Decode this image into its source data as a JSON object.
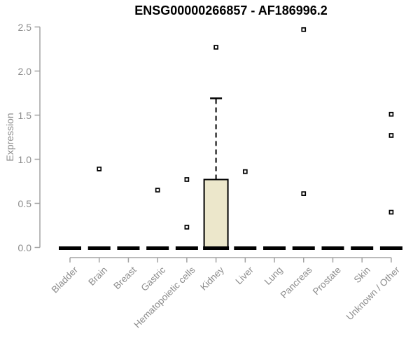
{
  "colors": {
    "box_fill": "#ece7cb",
    "box_border": "#000000",
    "median": "#000000",
    "axis_line": "#a3a3a3",
    "tick_text": "#8c8c8c",
    "title_text": "#000000",
    "outlier_fill": "#ffffff",
    "outlier_stroke": "#000000"
  },
  "chart_data": {
    "type": "boxplot",
    "title": "ENSG00000266857 - AF186996.2",
    "ylabel": "Expression",
    "ylim": [
      0.0,
      2.5
    ],
    "yticks": [
      0.0,
      0.5,
      1.0,
      1.5,
      2.0,
      2.5
    ],
    "ytick_labels": [
      "0.0",
      "0.5",
      "1.0",
      "1.5",
      "2.0",
      "2.5"
    ],
    "grid": "off",
    "legend": "none",
    "categories": [
      "Bladder",
      "Brain",
      "Breast",
      "Gastric",
      "Hematopoietic cells",
      "Kidney",
      "Liver",
      "Lung",
      "Pancreas",
      "Prostate",
      "Skin",
      "Unknown / Other"
    ],
    "boxes": [
      {
        "category": "Bladder",
        "low": 0,
        "q1": 0,
        "median": 0,
        "q3": 0,
        "high": 0,
        "outliers": []
      },
      {
        "category": "Brain",
        "low": 0,
        "q1": 0,
        "median": 0,
        "q3": 0,
        "high": 0,
        "outliers": [
          0.89
        ]
      },
      {
        "category": "Breast",
        "low": 0,
        "q1": 0,
        "median": 0,
        "q3": 0,
        "high": 0,
        "outliers": []
      },
      {
        "category": "Gastric",
        "low": 0,
        "q1": 0,
        "median": 0,
        "q3": 0,
        "high": 0,
        "outliers": [
          0.65
        ]
      },
      {
        "category": "Hematopoietic cells",
        "low": 0,
        "q1": 0,
        "median": 0,
        "q3": 0,
        "high": 0,
        "outliers": [
          0.77,
          0.23
        ]
      },
      {
        "category": "Kidney",
        "low": 0,
        "q1": 0,
        "median": 0,
        "q3": 0.77,
        "high": 1.69,
        "outliers": [
          2.27
        ]
      },
      {
        "category": "Liver",
        "low": 0,
        "q1": 0,
        "median": 0,
        "q3": 0,
        "high": 0,
        "outliers": [
          0.86
        ]
      },
      {
        "category": "Lung",
        "low": 0,
        "q1": 0,
        "median": 0,
        "q3": 0,
        "high": 0,
        "outliers": []
      },
      {
        "category": "Pancreas",
        "low": 0,
        "q1": 0,
        "median": 0,
        "q3": 0,
        "high": 0,
        "outliers": [
          2.47,
          0.61
        ]
      },
      {
        "category": "Prostate",
        "low": 0,
        "q1": 0,
        "median": 0,
        "q3": 0,
        "high": 0,
        "outliers": []
      },
      {
        "category": "Skin",
        "low": 0,
        "q1": 0,
        "median": 0,
        "q3": 0,
        "high": 0,
        "outliers": []
      },
      {
        "category": "Unknown / Other",
        "low": 0,
        "q1": 0,
        "median": 0,
        "q3": 0,
        "high": 0,
        "outliers": [
          1.51,
          1.27,
          0.4
        ]
      }
    ]
  }
}
